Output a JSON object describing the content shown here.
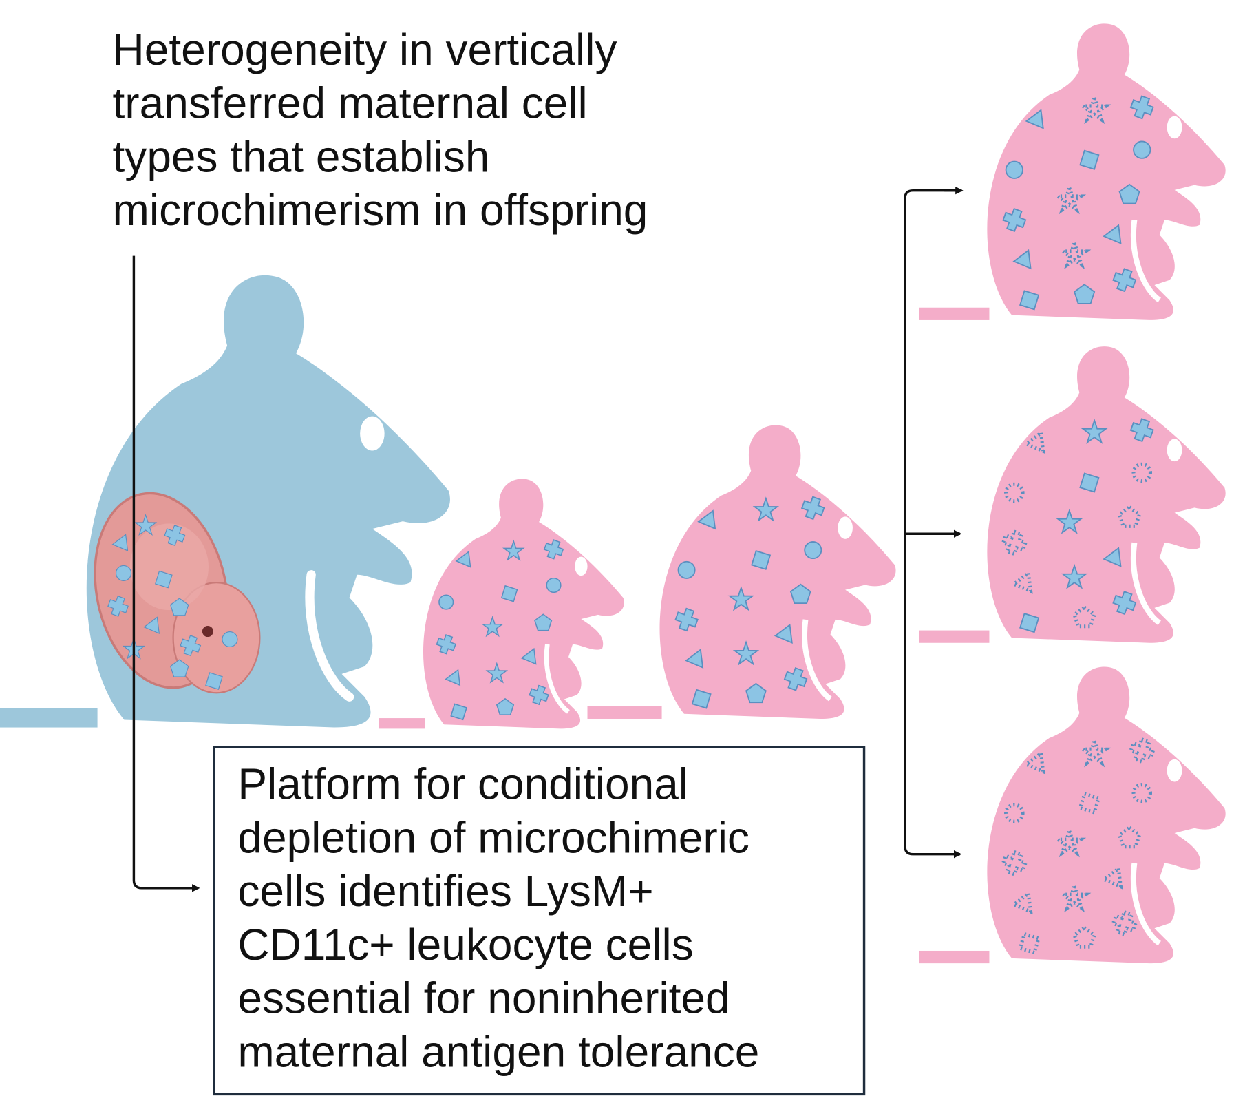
{
  "title_lines": [
    "Heterogeneity in vertically",
    "transferred maternal cell",
    "types that establish",
    "microchimerism in offspring"
  ],
  "box_lines": [
    "Platform for conditional",
    "depletion of microchimeric",
    "cells identifies LysM+",
    "CD11c+ leukocyte cells",
    "essential for noninherited",
    "maternal antigen tolerance"
  ],
  "colors": {
    "mother": "#9dc7db",
    "offspring": "#f4adc9",
    "cell": "#8cc4e4",
    "cell_stroke": "#5b8fc0",
    "embryo": "#e39a98",
    "line": "#111111",
    "box_border": "#1f2d3d"
  }
}
